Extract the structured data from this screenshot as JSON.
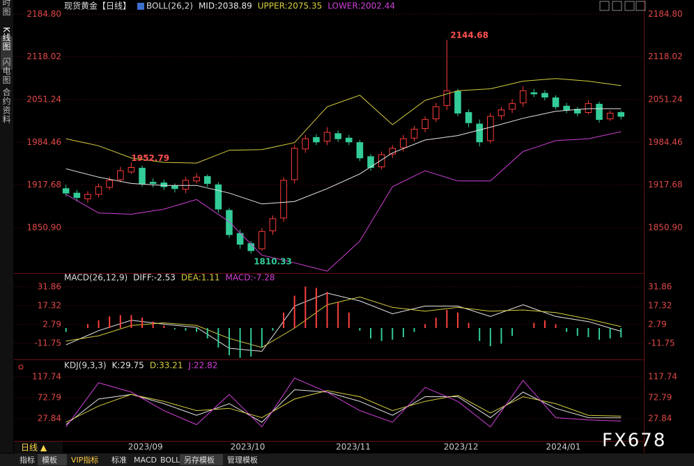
{
  "sidebar": [
    "分时图",
    "K线图",
    "闪电图",
    "合约资料"
  ],
  "period_label": "日线 ▲",
  "toolbar": [
    "指标",
    "模板",
    "VIP指标",
    "标准",
    "MACD",
    "BOLL",
    "另存模板",
    "管理模板"
  ],
  "watermark": "FX678",
  "chart_data": [
    {
      "type": "candlestick",
      "title": "现货黄金【日线】",
      "indicator": "BOLL(26,2)",
      "up_color": "#ff3c3c",
      "down_color": "#33cc99",
      "xlim": [
        -0.3,
        52.2
      ],
      "ylim": [
        1780,
        2196
      ],
      "yticks": [
        {
          "value": 1850.9,
          "label": "1850.90"
        },
        1917.68,
        1984.46,
        2051.24,
        2118.02,
        {
          "value": 2184.8,
          "label": "2184.80"
        }
      ],
      "grid": true,
      "open": [
        1912,
        1905,
        1896,
        1903,
        1914,
        1926,
        1938,
        1944,
        1922,
        1921,
        1916,
        1911,
        1924,
        1931,
        1918,
        1878,
        1842,
        1826,
        1818,
        1846,
        1866,
        1926,
        1974,
        1992,
        1986,
        1998,
        1991,
        1984,
        1962,
        1946,
        1966,
        1976,
        1991,
        2006,
        2021,
        2042,
        2064,
        2031,
        2013,
        1987,
        2026,
        2036,
        2046,
        2062,
        2061,
        2054,
        2041,
        2036,
        2031,
        2044,
        2021,
        2031
      ],
      "high": [
        1918,
        1910,
        1908,
        1920,
        1930,
        1946,
        1952.79,
        1948,
        1928,
        1926,
        1920,
        1930,
        1936,
        1934,
        1922,
        1882,
        1848,
        1830,
        1850,
        1870,
        1930,
        1980,
        1996,
        1997,
        2008,
        2003,
        1996,
        1988,
        1966,
        1970,
        1980,
        1996,
        2010,
        2025,
        2046,
        2144.68,
        2068,
        2036,
        2020,
        2030,
        2040,
        2052,
        2072,
        2068,
        2066,
        2058,
        2046,
        2040,
        2050,
        2048,
        2034,
        2034
      ],
      "low": [
        1900,
        1892,
        1890,
        1898,
        1910,
        1922,
        1935,
        1915,
        1914,
        1910,
        1906,
        1905,
        1920,
        1915,
        1874,
        1835,
        1818,
        1810.33,
        1815,
        1840,
        1860,
        1920,
        1968,
        1980,
        1980,
        1985,
        1980,
        1955,
        1940,
        1942,
        1960,
        1970,
        1986,
        2000,
        2016,
        2035,
        2025,
        2008,
        1978,
        1983,
        2020,
        2030,
        2040,
        2055,
        2050,
        2036,
        2030,
        2025,
        2028,
        2015,
        2018,
        2020
      ],
      "close": [
        1905,
        1898,
        1903,
        1915,
        1925,
        1940,
        1945,
        1920,
        1920,
        1915,
        1912,
        1925,
        1930,
        1920,
        1880,
        1840,
        1825,
        1815,
        1845,
        1865,
        1925,
        1975,
        1990,
        1985,
        2000,
        1990,
        1985,
        1960,
        1945,
        1965,
        1975,
        1990,
        2005,
        2020,
        2040,
        2065,
        2030,
        2015,
        1985,
        2025,
        2035,
        2045,
        2065,
        2060,
        2055,
        2040,
        2035,
        2030,
        2045,
        2020,
        2030,
        2025
      ],
      "series": [
        {
          "name": "MID:2038.89",
          "color": "#e8e8e8",
          "x": [
            0,
            3,
            6,
            9,
            12,
            15,
            18,
            21,
            24,
            27,
            30,
            33,
            36,
            39,
            42,
            45,
            48,
            51
          ],
          "values": [
            1943,
            1930,
            1920,
            1917,
            1917,
            1905,
            1888,
            1892,
            1912,
            1935,
            1968,
            1988,
            1995,
            2008,
            2022,
            2033,
            2037,
            2037
          ]
        },
        {
          "name": "UPPER:2075.35",
          "color": "#d8d040",
          "x": [
            0,
            3,
            6,
            9,
            12,
            15,
            18,
            21,
            24,
            27,
            30,
            33,
            36,
            39,
            42,
            45,
            48,
            51
          ],
          "values": [
            1990,
            1979,
            1960,
            1953,
            1952,
            1972,
            1973,
            1984,
            2040,
            2058,
            2012,
            2050,
            2065,
            2068,
            2080,
            2084,
            2080,
            2073
          ]
        },
        {
          "name": "LOWER:2002.44",
          "color": "#d040d8",
          "x": [
            0,
            3,
            6,
            9,
            12,
            15,
            18,
            21,
            24,
            27,
            30,
            33,
            36,
            39,
            42,
            45,
            48,
            51
          ],
          "values": [
            1903,
            1874,
            1872,
            1880,
            1895,
            1860,
            1808,
            1796,
            1783,
            1830,
            1915,
            1940,
            1924,
            1924,
            1970,
            1987,
            1990,
            2001
          ]
        }
      ]
    },
    {
      "type": "macd",
      "indicator": "MACD(26,12,9)",
      "xlim": [
        -0.3,
        52.2
      ],
      "ylim": [
        -23.7,
        40.9
      ],
      "yticks": [
        -11.75,
        2.79,
        17.32,
        31.86
      ],
      "grid": true,
      "series": [
        {
          "name": "DIFF:-2.53",
          "color": "#e8e8e8",
          "x": [
            0,
            3,
            6,
            9,
            12,
            15,
            18,
            21,
            24,
            27,
            30,
            33,
            36,
            39,
            42,
            45,
            48,
            51
          ],
          "values": [
            -13,
            -2,
            6,
            3,
            0.5,
            -15.6,
            -18,
            17,
            27,
            21,
            11,
            17,
            17,
            9,
            18,
            9,
            5,
            -2.53
          ]
        },
        {
          "name": "DEA:1.11",
          "color": "#d8d040",
          "x": [
            0,
            3,
            6,
            9,
            12,
            15,
            18,
            21,
            24,
            27,
            30,
            33,
            36,
            39,
            42,
            45,
            48,
            51
          ],
          "values": [
            -10,
            -6,
            2,
            4,
            2,
            -8,
            -15,
            0,
            18,
            24,
            16,
            13,
            16,
            13,
            14,
            12,
            7,
            1.11
          ]
        },
        {
          "name": "MACD:-7.28",
          "color": "#d040d8",
          "up_color": "#ff4040",
          "down_color": "#33cc99",
          "bars": true,
          "values": [
            -3,
            0,
            3,
            6,
            9,
            10,
            10,
            8,
            5,
            2,
            -1,
            -2,
            -3,
            -8,
            -15,
            -21,
            -23,
            -22,
            -15,
            -2,
            12,
            25,
            32,
            31,
            28,
            20,
            12,
            -2,
            -8,
            -10,
            -9,
            -7,
            -3,
            3,
            8,
            14,
            12,
            4,
            -10,
            -14,
            -12,
            -6,
            0,
            4,
            6,
            3,
            -3,
            -6,
            -7,
            -9,
            -8,
            -7.28
          ]
        }
      ]
    },
    {
      "type": "line",
      "indicator": "KDJ(9,3,3)",
      "xlim": [
        -0.3,
        52.2
      ],
      "ylim": [
        -18.6,
        147.7
      ],
      "yticks": [
        27.84,
        72.79,
        117.74
      ],
      "grid": true,
      "xticks": [
        {
          "value": 7.3,
          "label": "2023/09"
        },
        {
          "value": 16.7,
          "label": "2023/10"
        },
        {
          "value": 26.4,
          "label": "2023/11"
        },
        {
          "value": 36.3,
          "label": "2023/12"
        },
        {
          "value": 45.7,
          "label": "2024/01"
        }
      ],
      "series": [
        {
          "name": "K:29.75",
          "color": "#e8e8e8",
          "x": [
            0,
            3,
            6,
            9,
            12,
            15,
            18,
            21,
            24,
            27,
            30,
            33,
            36,
            39,
            42,
            45,
            48,
            51
          ],
          "values": [
            15,
            70,
            80,
            60,
            35,
            60,
            20,
            90,
            85,
            65,
            35,
            75,
            75,
            30,
            85,
            50,
            30,
            29.75
          ]
        },
        {
          "name": "D:33.21",
          "color": "#d8d040",
          "x": [
            0,
            3,
            6,
            9,
            12,
            15,
            18,
            21,
            24,
            27,
            30,
            33,
            36,
            39,
            42,
            45,
            48,
            51
          ],
          "values": [
            20,
            55,
            80,
            65,
            45,
            50,
            30,
            70,
            88,
            75,
            45,
            65,
            78,
            40,
            75,
            60,
            35,
            33.21
          ]
        },
        {
          "name": "J:22.82",
          "color": "#d040d8",
          "x": [
            0,
            3,
            6,
            9,
            12,
            15,
            18,
            21,
            24,
            27,
            30,
            33,
            36,
            39,
            42,
            45,
            48,
            51
          ],
          "values": [
            10,
            105,
            85,
            45,
            15,
            80,
            10,
            115,
            85,
            45,
            20,
            95,
            65,
            10,
            110,
            30,
            25,
            22.82
          ]
        }
      ]
    }
  ]
}
